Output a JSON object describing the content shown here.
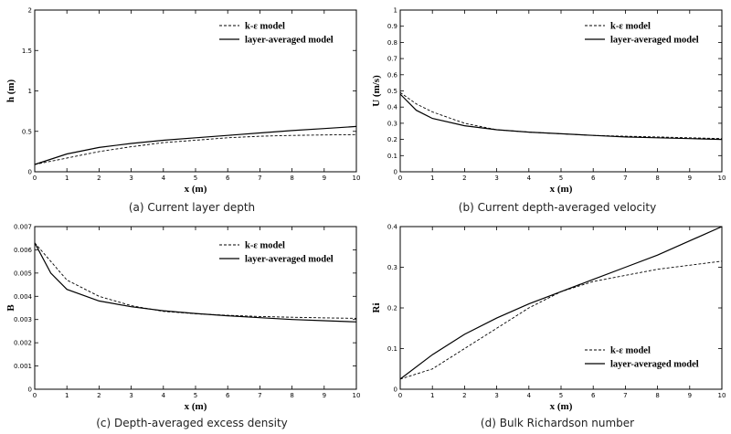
{
  "chart_data": [
    {
      "type": "line",
      "caption": "(a) Current layer depth",
      "xlabel": "x (m)",
      "ylabel": "h (m)",
      "xlim": [
        0,
        10
      ],
      "ylim": [
        0,
        2
      ],
      "xticks": [
        0,
        1,
        2,
        3,
        4,
        5,
        6,
        7,
        8,
        9,
        10
      ],
      "yticks": [
        0,
        0.5,
        1,
        1.5,
        2
      ],
      "legend_position": "top-right",
      "series": [
        {
          "name": "k-ε model",
          "style": "dashed",
          "x": [
            0,
            1,
            2,
            3,
            4,
            5,
            6,
            7,
            8,
            9,
            10
          ],
          "y": [
            0.09,
            0.17,
            0.25,
            0.31,
            0.36,
            0.39,
            0.42,
            0.44,
            0.45,
            0.455,
            0.46
          ]
        },
        {
          "name": "layer-averaged model",
          "style": "solid",
          "x": [
            0,
            1,
            2,
            3,
            4,
            5,
            6,
            7,
            8,
            9,
            10
          ],
          "y": [
            0.09,
            0.22,
            0.3,
            0.35,
            0.39,
            0.42,
            0.45,
            0.48,
            0.51,
            0.535,
            0.56
          ]
        }
      ]
    },
    {
      "type": "line",
      "caption": "(b) Current depth-averaged velocity",
      "xlabel": "x (m)",
      "ylabel": "U (m/s)",
      "xlim": [
        0,
        10
      ],
      "ylim": [
        0,
        1
      ],
      "xticks": [
        0,
        1,
        2,
        3,
        4,
        5,
        6,
        7,
        8,
        9,
        10
      ],
      "yticks": [
        0,
        0.1,
        0.2,
        0.3,
        0.4,
        0.5,
        0.6,
        0.7,
        0.8,
        0.9,
        1
      ],
      "legend_position": "top-right",
      "series": [
        {
          "name": "k-ε model",
          "style": "dashed",
          "x": [
            0,
            0.5,
            1,
            2,
            3,
            4,
            5,
            6,
            7,
            8,
            9,
            10
          ],
          "y": [
            0.49,
            0.42,
            0.37,
            0.3,
            0.26,
            0.245,
            0.235,
            0.225,
            0.22,
            0.215,
            0.21,
            0.205
          ]
        },
        {
          "name": "layer-averaged model",
          "style": "solid",
          "x": [
            0,
            0.5,
            1,
            2,
            3,
            4,
            5,
            6,
            7,
            8,
            9,
            10
          ],
          "y": [
            0.48,
            0.38,
            0.33,
            0.285,
            0.26,
            0.245,
            0.235,
            0.225,
            0.215,
            0.21,
            0.205,
            0.2
          ]
        }
      ]
    },
    {
      "type": "line",
      "caption": "(c) Depth-averaged excess density",
      "xlabel": "x (m)",
      "ylabel": "B",
      "xlim": [
        0,
        10
      ],
      "ylim": [
        0,
        0.007
      ],
      "xticks": [
        0,
        1,
        2,
        3,
        4,
        5,
        6,
        7,
        8,
        9,
        10
      ],
      "yticks": [
        0,
        0.001,
        0.002,
        0.003,
        0.004,
        0.005,
        0.006,
        0.007
      ],
      "legend_position": "top-right",
      "series": [
        {
          "name": "k-ε model",
          "style": "dashed",
          "x": [
            0,
            0.5,
            1,
            2,
            3,
            4,
            5,
            6,
            7,
            8,
            9,
            10
          ],
          "y": [
            0.0063,
            0.0055,
            0.0047,
            0.004,
            0.0036,
            0.00335,
            0.00325,
            0.00318,
            0.00313,
            0.0031,
            0.00307,
            0.00305
          ]
        },
        {
          "name": "layer-averaged model",
          "style": "solid",
          "x": [
            0,
            0.5,
            1,
            2,
            3,
            4,
            5,
            6,
            7,
            8,
            9,
            10
          ],
          "y": [
            0.0063,
            0.005,
            0.0043,
            0.0038,
            0.00355,
            0.00338,
            0.00326,
            0.00316,
            0.00308,
            0.003,
            0.00295,
            0.0029
          ]
        }
      ]
    },
    {
      "type": "line",
      "caption": "(d) Bulk Richardson number",
      "xlabel": "x (m)",
      "ylabel": "Ri",
      "xlim": [
        0,
        10
      ],
      "ylim": [
        0,
        0.4
      ],
      "xticks": [
        0,
        1,
        2,
        3,
        4,
        5,
        6,
        7,
        8,
        9,
        10
      ],
      "yticks": [
        0,
        0.1,
        0.2,
        0.3,
        0.4
      ],
      "legend_position": "bottom-right",
      "series": [
        {
          "name": "k-ε model",
          "style": "dashed",
          "x": [
            0,
            1,
            2,
            3,
            4,
            5,
            6,
            7,
            8,
            9,
            10
          ],
          "y": [
            0.025,
            0.05,
            0.1,
            0.15,
            0.2,
            0.24,
            0.265,
            0.28,
            0.295,
            0.305,
            0.315
          ]
        },
        {
          "name": "layer-averaged model",
          "style": "solid",
          "x": [
            0,
            1,
            2,
            3,
            4,
            5,
            6,
            7,
            8,
            9,
            10
          ],
          "y": [
            0.025,
            0.085,
            0.135,
            0.175,
            0.21,
            0.24,
            0.27,
            0.3,
            0.33,
            0.365,
            0.4
          ]
        }
      ]
    }
  ]
}
